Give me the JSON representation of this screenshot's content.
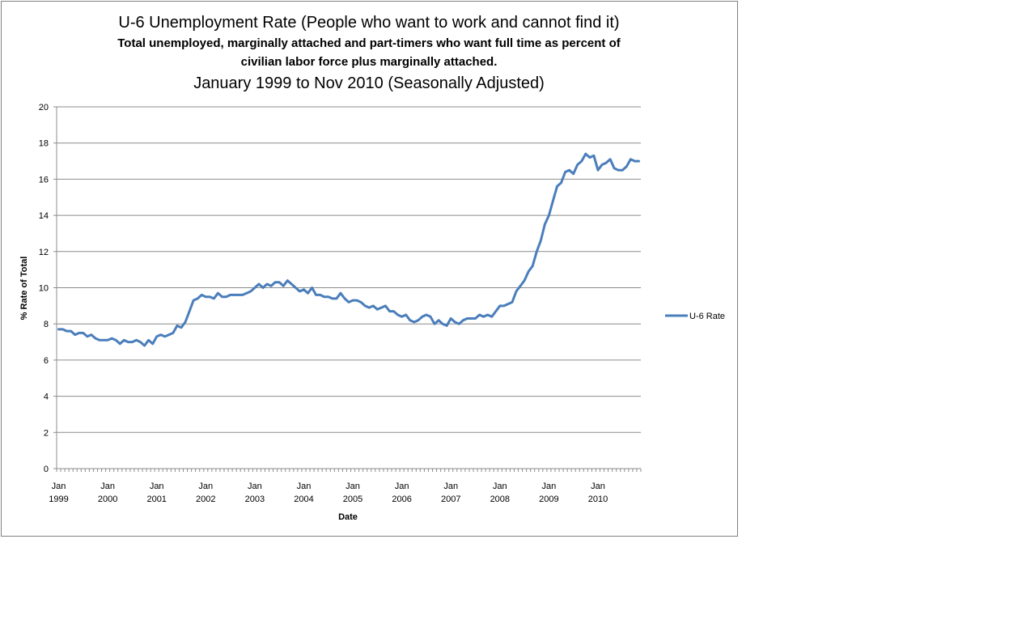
{
  "chart_data": {
    "type": "line",
    "title": "U-6 Unemployment Rate (People who want to work and cannot find it)",
    "subtitle_line1": "Total unemployed, marginally attached and part-timers who  want full time as percent of",
    "subtitle_line2": "civilian labor force plus marginally attached.",
    "date_range": "January 1999 to Nov 2010 (Seasonally Adjusted)",
    "xlabel": "Date",
    "ylabel": "% Rate of Total",
    "ylim": [
      0,
      20
    ],
    "yticks": [
      "0",
      "2",
      "4",
      "6",
      "8",
      "10",
      "12",
      "14",
      "16",
      "18",
      "20"
    ],
    "xticks": [
      {
        "month": "Jan",
        "year": "1999"
      },
      {
        "month": "Jan",
        "year": "2000"
      },
      {
        "month": "Jan",
        "year": "2001"
      },
      {
        "month": "Jan",
        "year": "2002"
      },
      {
        "month": "Jan",
        "year": "2003"
      },
      {
        "month": "Jan",
        "year": "2004"
      },
      {
        "month": "Jan",
        "year": "2005"
      },
      {
        "month": "Jan",
        "year": "2006"
      },
      {
        "month": "Jan",
        "year": "2007"
      },
      {
        "month": "Jan",
        "year": "2008"
      },
      {
        "month": "Jan",
        "year": "2009"
      },
      {
        "month": "Jan",
        "year": "2010"
      }
    ],
    "grid": true,
    "legend_position": "right",
    "series": [
      {
        "name": "U-6 Rate",
        "color": "#4a7ebb",
        "start": "1999-01",
        "end": "2010-11",
        "values": [
          7.7,
          7.7,
          7.6,
          7.6,
          7.4,
          7.5,
          7.5,
          7.3,
          7.4,
          7.2,
          7.1,
          7.1,
          7.1,
          7.2,
          7.1,
          6.9,
          7.1,
          7.0,
          7.0,
          7.1,
          7.0,
          6.8,
          7.1,
          6.9,
          7.3,
          7.4,
          7.3,
          7.4,
          7.5,
          7.9,
          7.8,
          8.1,
          8.7,
          9.3,
          9.4,
          9.6,
          9.5,
          9.5,
          9.4,
          9.7,
          9.5,
          9.5,
          9.6,
          9.6,
          9.6,
          9.6,
          9.7,
          9.8,
          10.0,
          10.2,
          10.0,
          10.2,
          10.1,
          10.3,
          10.3,
          10.1,
          10.4,
          10.2,
          10.0,
          9.8,
          9.9,
          9.7,
          10.0,
          9.6,
          9.6,
          9.5,
          9.5,
          9.4,
          9.4,
          9.7,
          9.4,
          9.2,
          9.3,
          9.3,
          9.2,
          9.0,
          8.9,
          9.0,
          8.8,
          8.9,
          9.0,
          8.7,
          8.7,
          8.5,
          8.4,
          8.5,
          8.2,
          8.1,
          8.2,
          8.4,
          8.5,
          8.4,
          8.0,
          8.2,
          8.0,
          7.9,
          8.3,
          8.1,
          8.0,
          8.2,
          8.3,
          8.3,
          8.3,
          8.5,
          8.4,
          8.5,
          8.4,
          8.7,
          9.0,
          9.0,
          9.1,
          9.2,
          9.8,
          10.1,
          10.4,
          10.9,
          11.2,
          12.0,
          12.6,
          13.5,
          14.0,
          14.8,
          15.6,
          15.8,
          16.4,
          16.5,
          16.3,
          16.8,
          17.0,
          17.4,
          17.2,
          17.3,
          16.5,
          16.8,
          16.9,
          17.1,
          16.6,
          16.5,
          16.5,
          16.7,
          17.1,
          17.0,
          17.0
        ]
      }
    ]
  }
}
